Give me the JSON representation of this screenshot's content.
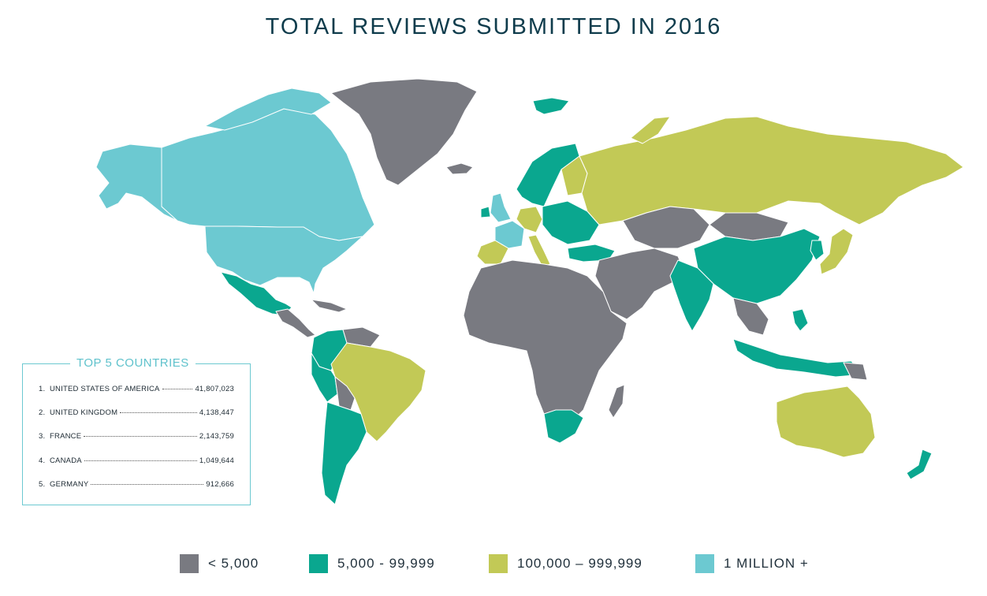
{
  "title": "TOTAL REVIEWS SUBMITTED IN 2016",
  "colors": {
    "tier1": "#797a81",
    "tier2": "#0aa78f",
    "tier3": "#c2c956",
    "tier4": "#6cc9d1",
    "border": "#ffffff"
  },
  "top5": {
    "heading": "TOP 5 COUNTRIES",
    "rows": [
      {
        "rank": "1.",
        "country": "UNITED STATES OF AMERICA",
        "value": "41,807,023"
      },
      {
        "rank": "2.",
        "country": "UNITED KINGDOM",
        "value": "4,138,447"
      },
      {
        "rank": "3.",
        "country": "FRANCE",
        "value": "2,143,759"
      },
      {
        "rank": "4.",
        "country": "CANADA",
        "value": "1,049,644"
      },
      {
        "rank": "5.",
        "country": "GERMANY",
        "value": "912,666"
      }
    ]
  },
  "legend": [
    {
      "label": "< 5,000",
      "color": "#797a81"
    },
    {
      "label": "5,000 - 99,999",
      "color": "#0aa78f"
    },
    {
      "label": "100,000 – 999,999",
      "color": "#c2c956"
    },
    {
      "label": "1 MILLION +",
      "color": "#6cc9d1"
    }
  ]
}
